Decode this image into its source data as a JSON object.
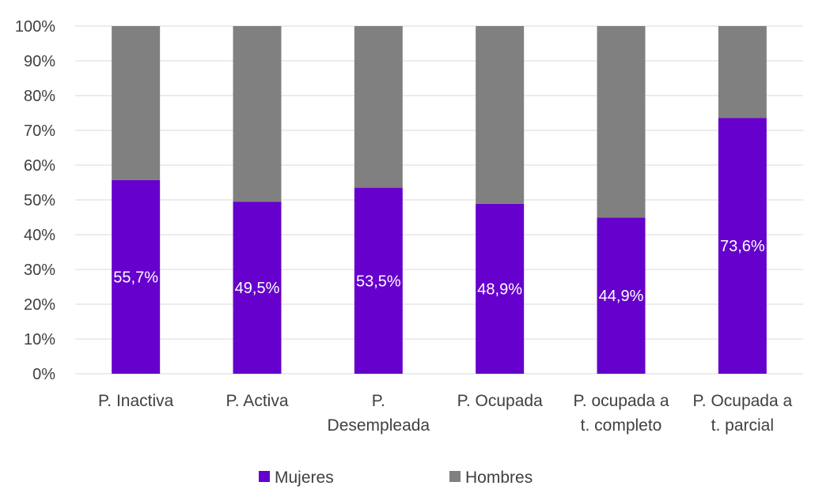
{
  "chart_data": {
    "type": "bar",
    "stacked": true,
    "normalized": true,
    "categories": [
      [
        "P. Inactiva"
      ],
      [
        "P. Activa"
      ],
      [
        "P.",
        "Desempleada"
      ],
      [
        "P. Ocupada"
      ],
      [
        "P. ocupada a",
        "t. completo"
      ],
      [
        "P. Ocupada a",
        "t. parcial"
      ]
    ],
    "series": [
      {
        "name": "Mujeres",
        "color": "#6600cc",
        "values": [
          55.7,
          49.5,
          53.5,
          48.9,
          44.9,
          73.6
        ],
        "labels": [
          "55,7%",
          "49,5%",
          "53,5%",
          "48,9%",
          "44,9%",
          "73,6%"
        ]
      },
      {
        "name": "Hombres",
        "color": "#808080",
        "values": [
          44.3,
          50.5,
          46.5,
          51.1,
          55.1,
          26.4
        ]
      }
    ],
    "ylim": [
      0,
      100
    ],
    "yticks": [
      "0%",
      "10%",
      "20%",
      "30%",
      "40%",
      "50%",
      "60%",
      "70%",
      "80%",
      "90%",
      "100%"
    ],
    "grid": true,
    "legend_position": "bottom",
    "gridline_color": "#d9d9d9"
  }
}
